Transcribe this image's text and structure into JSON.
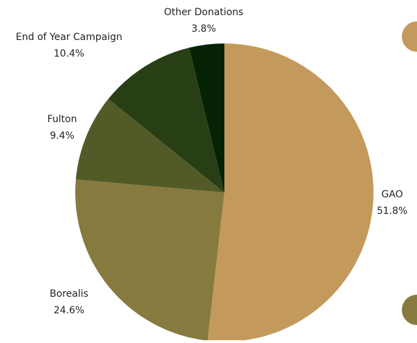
{
  "chart_data": {
    "type": "pie",
    "title": "",
    "slices": [
      {
        "label": "GAO",
        "value": 51.8,
        "display": "51.8%",
        "color": "#c39a5c"
      },
      {
        "label": "Borealis",
        "value": 24.6,
        "display": "24.6%",
        "color": "#877a3f"
      },
      {
        "label": "Fulton",
        "value": 9.4,
        "display": "9.4%",
        "color": "#525b28"
      },
      {
        "label": "End of Year Campaign",
        "value": 10.4,
        "display": "10.4%",
        "color": "#283f16"
      },
      {
        "label": "Other Donations",
        "value": 3.8,
        "display": "3.8%",
        "color": "#052204"
      }
    ],
    "start_angle": "12 o'clock",
    "direction": "clockwise",
    "legend": "right (partially cropped)"
  }
}
